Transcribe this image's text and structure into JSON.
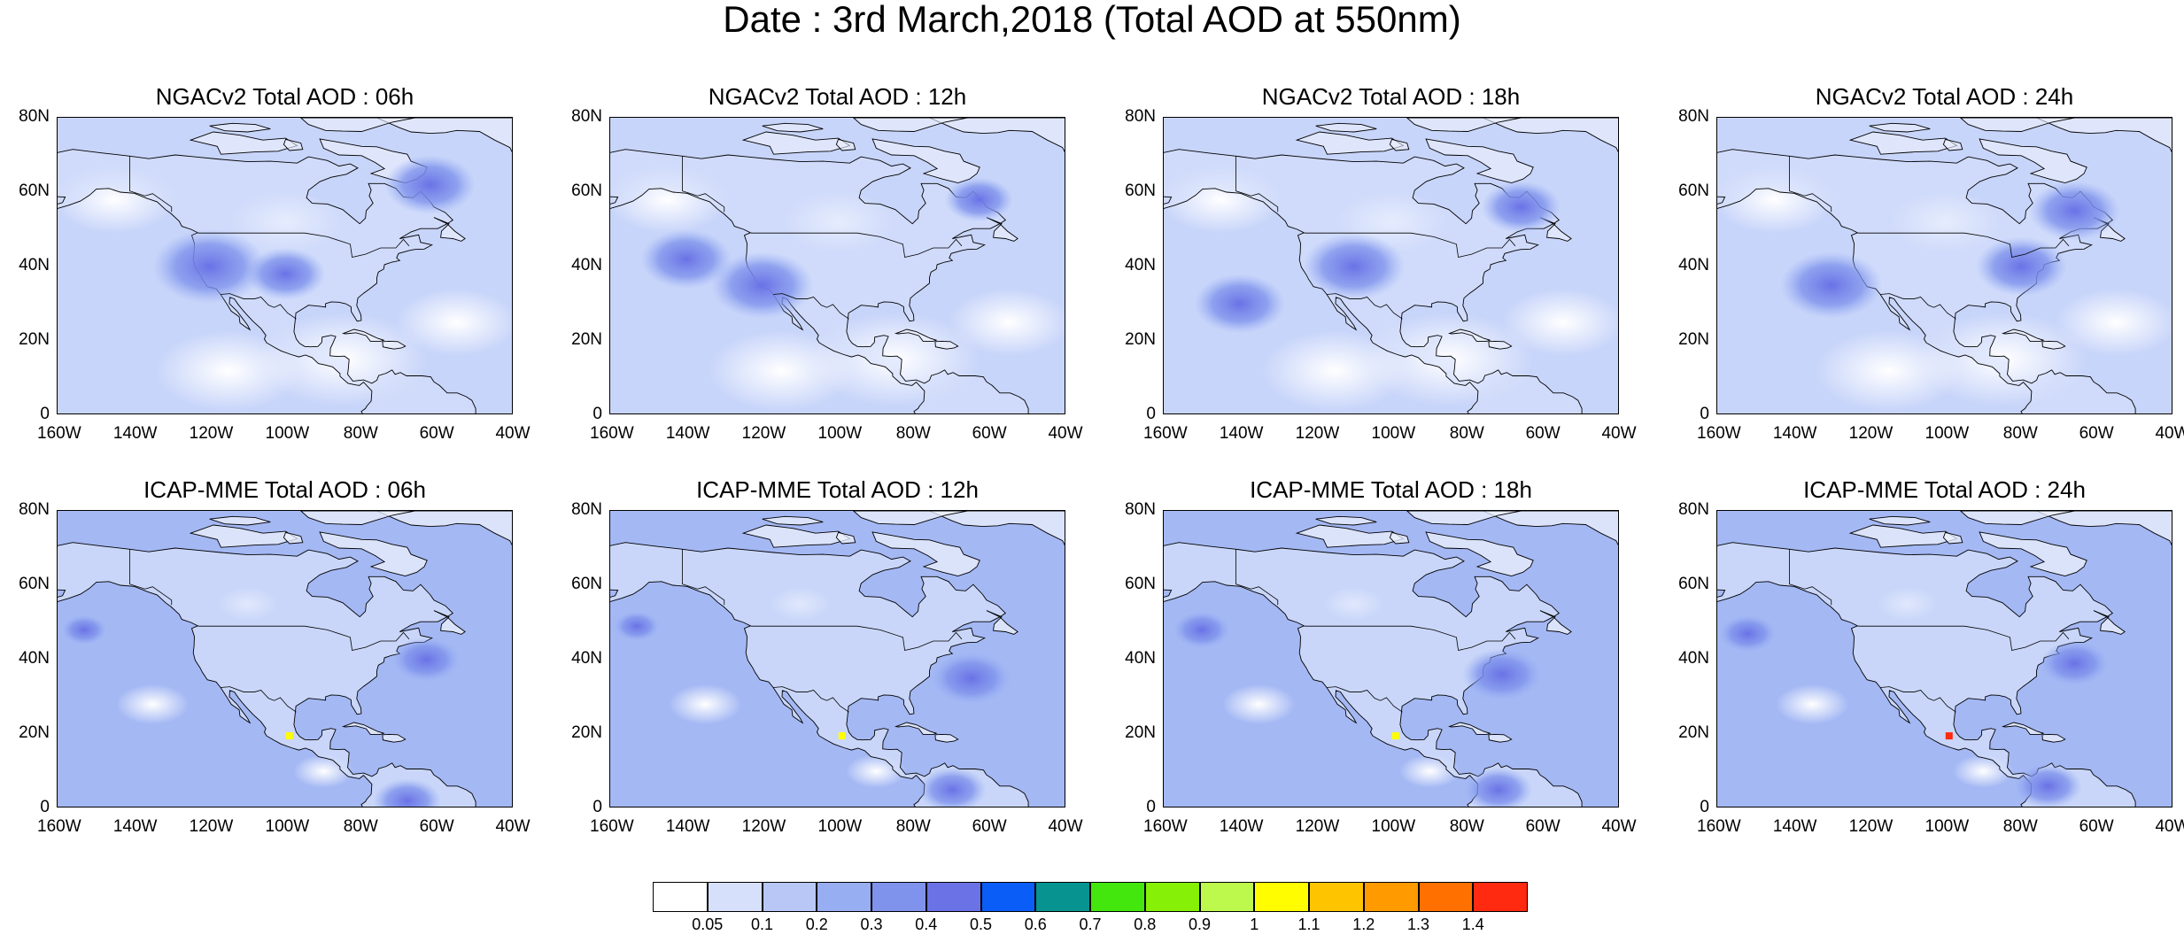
{
  "title": "Date : 3rd March,2018 (Total AOD at 550nm)",
  "colors": {
    "ocean_base": "#a4b8f4",
    "land_base": "#d6e0fb",
    "clean": "#ffffff",
    "coast": "#000000"
  },
  "axes": {
    "lat_ticks": [
      "80N",
      "60N",
      "40N",
      "20N",
      "0"
    ],
    "lon_ticks": [
      "160W",
      "140W",
      "120W",
      "100W",
      "80W",
      "60W",
      "40W"
    ]
  },
  "panels": [
    {
      "id": "ngac-06",
      "title": "NGACv2 Total AOD : 06h",
      "model": "NGACv2",
      "hour": "06h"
    },
    {
      "id": "ngac-12",
      "title": "NGACv2 Total AOD : 12h",
      "model": "NGACv2",
      "hour": "12h"
    },
    {
      "id": "ngac-18",
      "title": "NGACv2 Total AOD : 18h",
      "model": "NGACv2",
      "hour": "18h"
    },
    {
      "id": "ngac-24",
      "title": "NGACv2 Total AOD : 24h",
      "model": "NGACv2",
      "hour": "24h"
    },
    {
      "id": "icap-06",
      "title": "ICAP-MME Total AOD : 06h",
      "model": "ICAP-MME",
      "hour": "06h"
    },
    {
      "id": "icap-12",
      "title": "ICAP-MME Total AOD : 12h",
      "model": "ICAP-MME",
      "hour": "12h"
    },
    {
      "id": "icap-18",
      "title": "ICAP-MME Total AOD : 18h",
      "model": "ICAP-MME",
      "hour": "18h"
    },
    {
      "id": "icap-24",
      "title": "ICAP-MME Total AOD : 24h",
      "model": "ICAP-MME",
      "hour": "24h"
    }
  ],
  "colorbar": {
    "colors": [
      "#ffffff",
      "#d6e0fb",
      "#b8c7f6",
      "#97aef3",
      "#7f93ec",
      "#6a72e6",
      "#0a5df7",
      "#07938f",
      "#43e60d",
      "#86f006",
      "#bdf84c",
      "#fffd00",
      "#ffc400",
      "#ff9a00",
      "#ff7000",
      "#ff2a10"
    ],
    "labels": [
      "0.05",
      "0.1",
      "0.2",
      "0.3",
      "0.4",
      "0.5",
      "0.6",
      "0.7",
      "0.8",
      "0.9",
      "1",
      "1.1",
      "1.2",
      "1.3",
      "1.4"
    ]
  }
}
